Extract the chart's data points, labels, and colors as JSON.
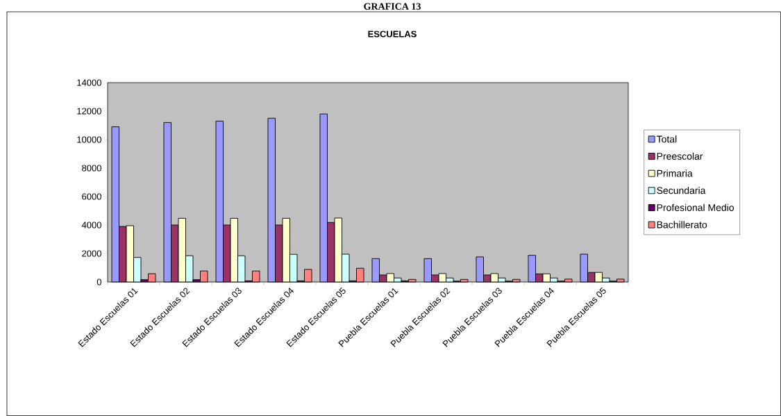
{
  "chart_data": {
    "type": "bar",
    "title": "ESCUELAS",
    "annotations": [
      "GRAFICA 13"
    ],
    "categories": [
      "Estado Escuelas 01",
      "Estado Escuelas 02",
      "Estado Escuelas 03",
      "Estado Escuelas 04",
      "Estado Escuelas 05",
      "Puebla Escuelas 01",
      "Puebla Escuelas 02",
      "Puebla Escuelas 03",
      "Puebla Escuelas 04",
      "Puebla Escuelas 05"
    ],
    "series": [
      {
        "name": "Total",
        "color": "#9999ff",
        "values": [
          10900,
          11200,
          11300,
          11500,
          11800,
          1640,
          1640,
          1760,
          1870,
          1950
        ]
      },
      {
        "name": "Preescolar",
        "color": "#993366",
        "values": [
          3900,
          4000,
          4000,
          4000,
          4180,
          490,
          490,
          490,
          570,
          670
        ]
      },
      {
        "name": "Primaria",
        "color": "#ffffcc",
        "values": [
          3950,
          4470,
          4470,
          4470,
          4490,
          590,
          590,
          590,
          570,
          670
        ]
      },
      {
        "name": "Secundaria",
        "color": "#ccffff",
        "values": [
          1720,
          1840,
          1840,
          1940,
          1950,
          280,
          280,
          280,
          280,
          280
        ]
      },
      {
        "name": "Profesional Medio",
        "color": "#660066",
        "values": [
          160,
          160,
          80,
          80,
          80,
          80,
          60,
          60,
          60,
          60
        ]
      },
      {
        "name": "Bachillerato",
        "color": "#ff8080",
        "values": [
          580,
          770,
          770,
          880,
          960,
          180,
          180,
          180,
          200,
          200
        ]
      }
    ],
    "ylim": [
      0,
      14000
    ],
    "yticks": [
      0,
      2000,
      4000,
      6000,
      8000,
      10000,
      12000,
      14000
    ],
    "grid": false,
    "legend": "right"
  }
}
